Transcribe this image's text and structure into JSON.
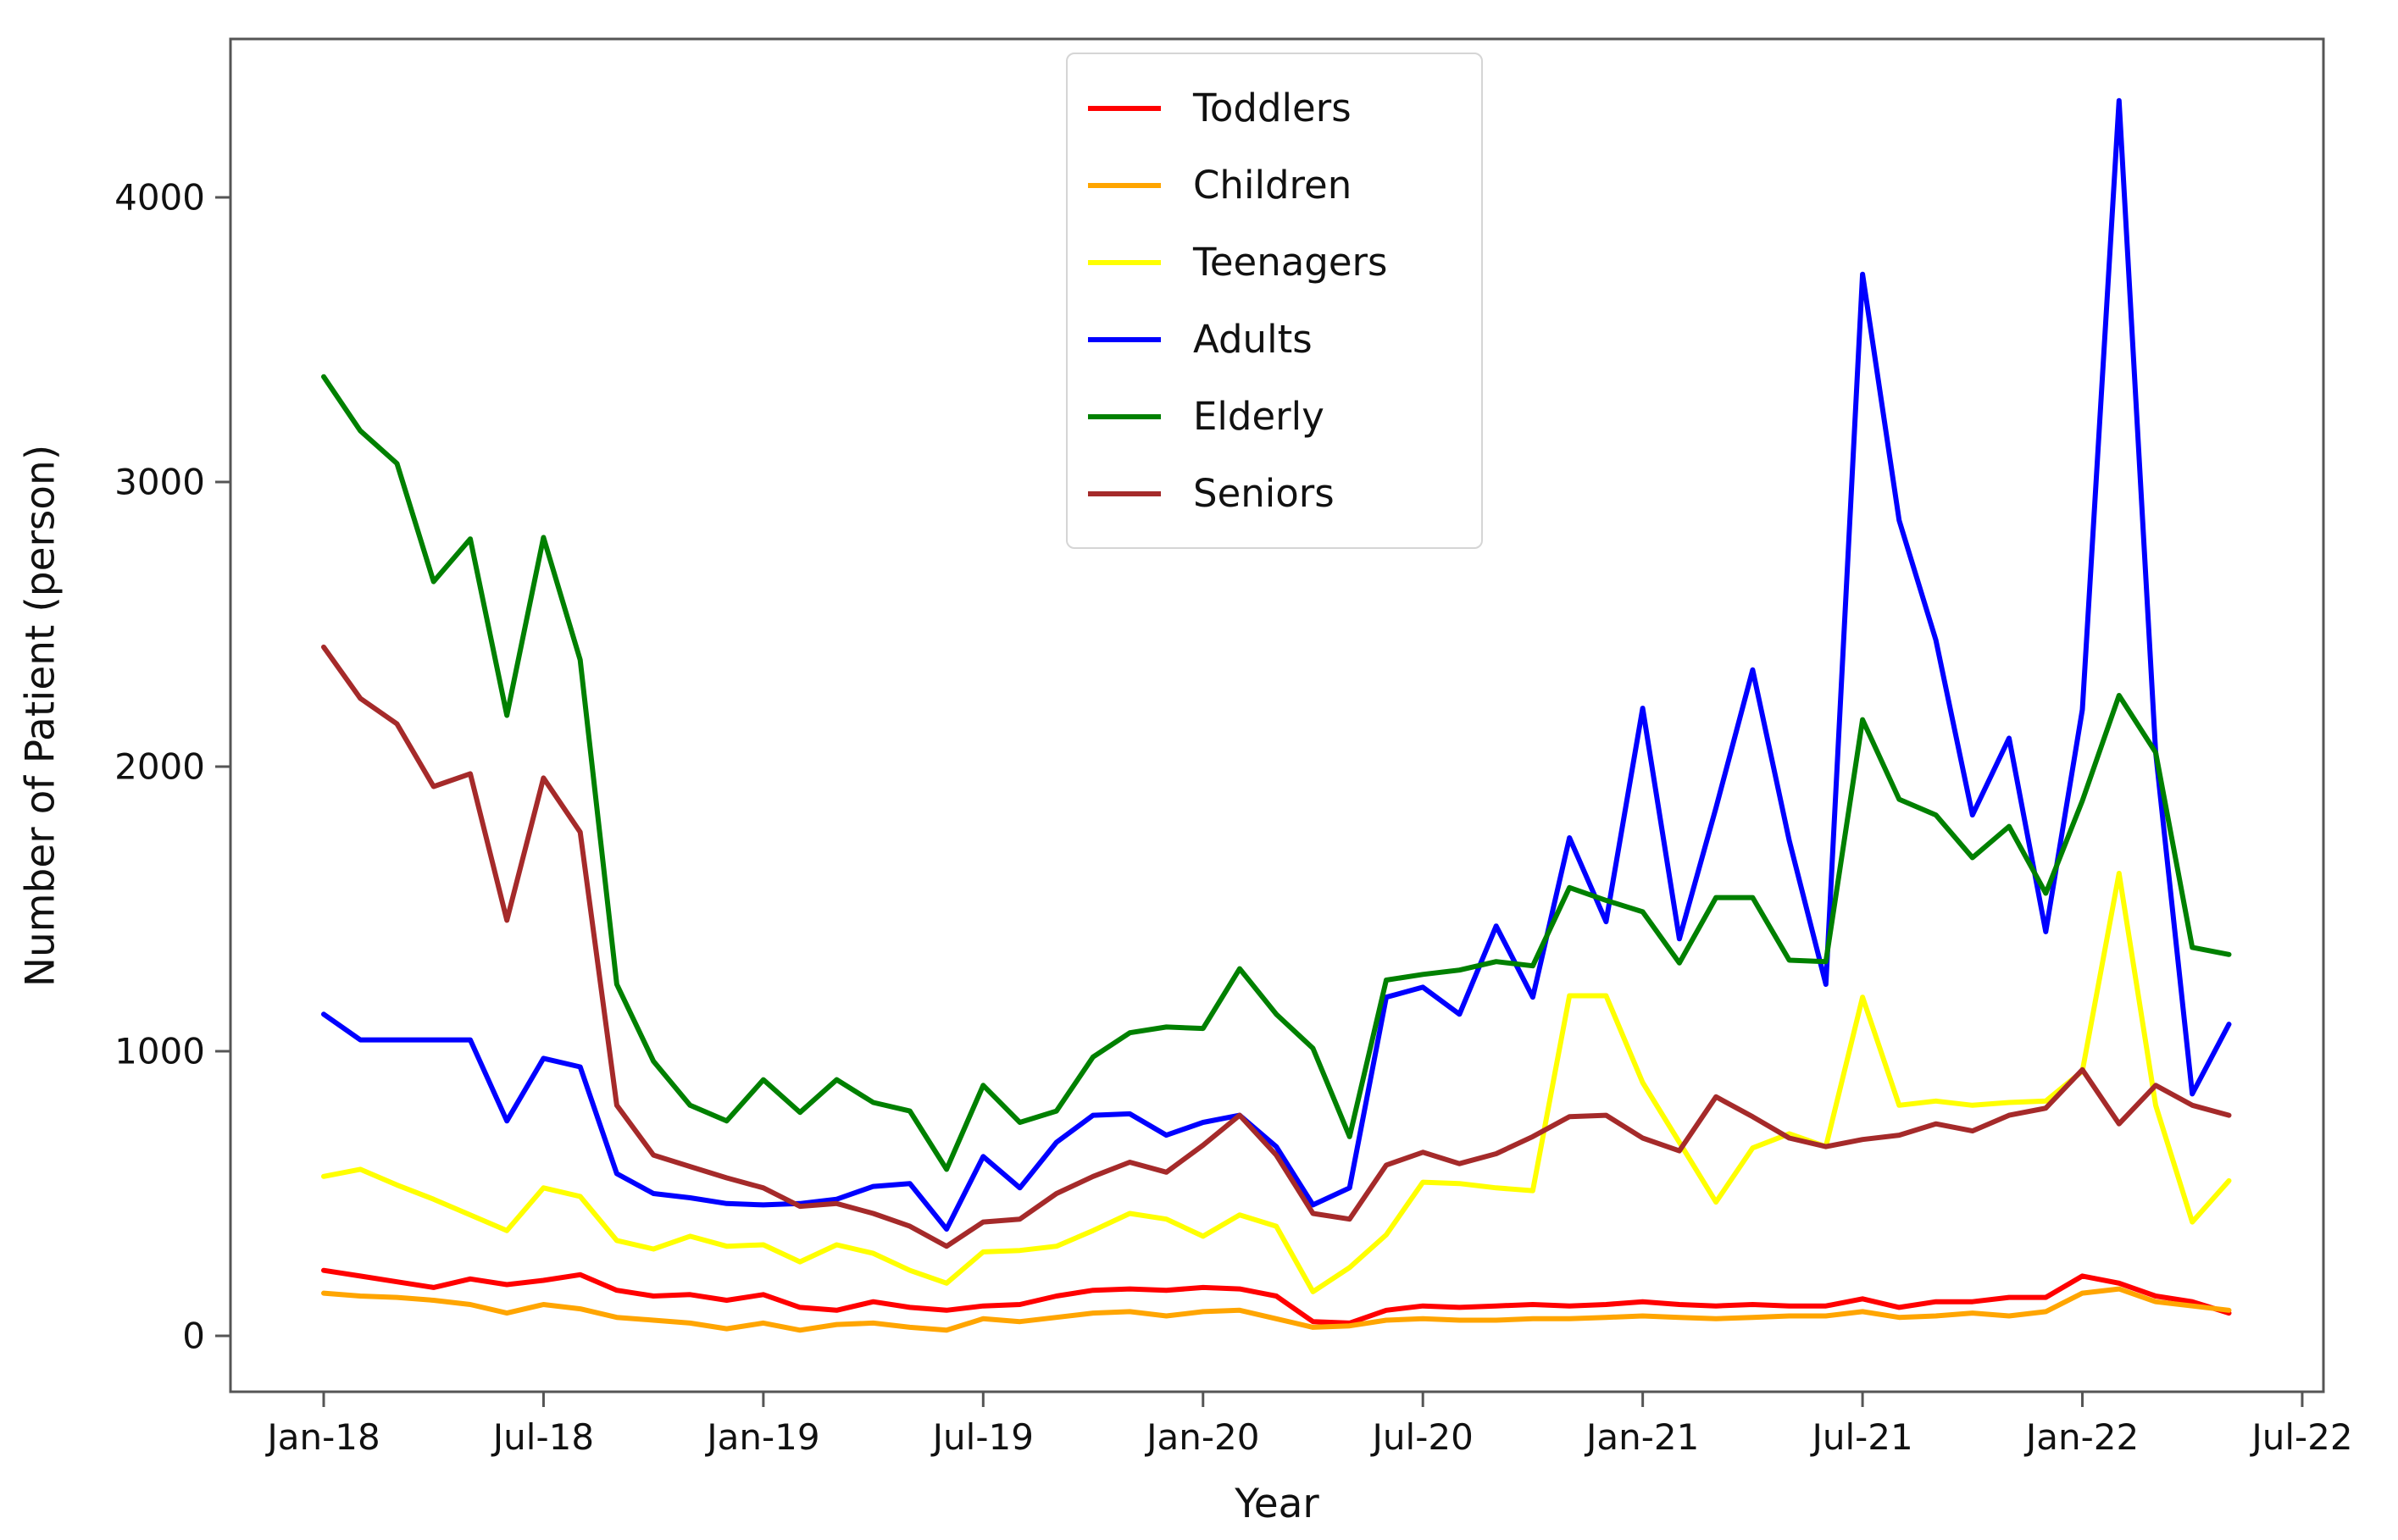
{
  "chart_data": {
    "type": "line",
    "title": "",
    "xlabel": "Year",
    "ylabel": "Number of Patient (person)",
    "x_tick_labels": [
      "Jan-18",
      "Jul-18",
      "Jan-19",
      "Jul-19",
      "Jan-20",
      "Jul-20",
      "Jan-21",
      "Jul-21",
      "Jan-22",
      "Jul-22"
    ],
    "y_ticks": [
      0,
      1000,
      2000,
      3000,
      4000
    ],
    "ylim": [
      -200,
      4600
    ],
    "grid": false,
    "legend_position": "upper center inside",
    "months": [
      "Jan-18",
      "Feb-18",
      "Mar-18",
      "Apr-18",
      "May-18",
      "Jun-18",
      "Jul-18",
      "Aug-18",
      "Sep-18",
      "Oct-18",
      "Nov-18",
      "Dec-18",
      "Jan-19",
      "Feb-19",
      "Mar-19",
      "Apr-19",
      "May-19",
      "Jun-19",
      "Jul-19",
      "Aug-19",
      "Sep-19",
      "Oct-19",
      "Nov-19",
      "Dec-19",
      "Jan-20",
      "Feb-20",
      "Mar-20",
      "Apr-20",
      "May-20",
      "Jun-20",
      "Jul-20",
      "Aug-20",
      "Sep-20",
      "Oct-20",
      "Nov-20",
      "Dec-20",
      "Jan-21",
      "Feb-21",
      "Mar-21",
      "Apr-21",
      "May-21",
      "Jun-21",
      "Jul-21",
      "Aug-21",
      "Sep-21",
      "Oct-21",
      "Nov-21",
      "Dec-21",
      "Jan-22",
      "Feb-22",
      "Mar-22",
      "Apr-22",
      "May-22"
    ],
    "series": [
      {
        "name": "Toddlers",
        "color": "#ff0000",
        "values": [
          230,
          210,
          190,
          170,
          200,
          180,
          195,
          215,
          160,
          140,
          145,
          125,
          145,
          100,
          90,
          120,
          100,
          90,
          105,
          110,
          140,
          160,
          165,
          160,
          170,
          165,
          140,
          50,
          45,
          90,
          105,
          100,
          105,
          110,
          105,
          110,
          120,
          110,
          105,
          110,
          105,
          105,
          130,
          100,
          120,
          120,
          135,
          135,
          210,
          185,
          140,
          120,
          80
        ]
      },
      {
        "name": "Children",
        "color": "#ffa500",
        "values": [
          150,
          140,
          135,
          125,
          110,
          80,
          110,
          95,
          65,
          55,
          45,
          25,
          45,
          20,
          40,
          45,
          30,
          20,
          60,
          50,
          65,
          80,
          85,
          70,
          85,
          90,
          60,
          30,
          35,
          55,
          60,
          55,
          55,
          60,
          60,
          65,
          70,
          65,
          60,
          65,
          70,
          70,
          85,
          65,
          70,
          80,
          70,
          85,
          150,
          165,
          120,
          105,
          90
        ]
      },
      {
        "name": "Teenagers",
        "color": "#ffff00",
        "values": [
          560,
          585,
          530,
          480,
          425,
          370,
          520,
          490,
          335,
          305,
          350,
          315,
          320,
          260,
          320,
          290,
          230,
          185,
          295,
          300,
          315,
          370,
          430,
          410,
          350,
          425,
          385,
          155,
          240,
          355,
          540,
          535,
          520,
          510,
          1195,
          1195,
          890,
          680,
          470,
          660,
          710,
          665,
          1190,
          810,
          825,
          810,
          820,
          825,
          930,
          1625,
          810,
          400,
          545
        ]
      },
      {
        "name": "Adults",
        "color": "#0000ff",
        "values": [
          1130,
          1040,
          1040,
          1040,
          1040,
          755,
          975,
          945,
          570,
          500,
          485,
          465,
          460,
          465,
          480,
          525,
          535,
          375,
          630,
          520,
          680,
          775,
          780,
          705,
          750,
          775,
          665,
          460,
          520,
          1190,
          1225,
          1130,
          1440,
          1190,
          1750,
          1455,
          2205,
          1395,
          1855,
          2340,
          1740,
          1235,
          3730,
          2865,
          2445,
          1830,
          2100,
          1420,
          2200,
          4340,
          2050,
          850,
          1095
        ]
      },
      {
        "name": "Elderly",
        "color": "#008000",
        "values": [
          3370,
          3180,
          3065,
          2650,
          2800,
          2180,
          2805,
          2375,
          1235,
          965,
          810,
          755,
          900,
          785,
          900,
          820,
          790,
          585,
          880,
          750,
          790,
          980,
          1065,
          1085,
          1080,
          1290,
          1130,
          1010,
          700,
          1250,
          1270,
          1285,
          1315,
          1300,
          1575,
          1530,
          1490,
          1310,
          1540,
          1540,
          1320,
          1315,
          2165,
          1885,
          1830,
          1680,
          1790,
          1555,
          1880,
          2250,
          2050,
          1365,
          1340
        ]
      },
      {
        "name": "Seniors",
        "color": "#a52a2a",
        "values": [
          2420,
          2240,
          2150,
          1930,
          1975,
          1460,
          1960,
          1770,
          810,
          635,
          595,
          555,
          520,
          455,
          465,
          430,
          385,
          315,
          400,
          410,
          500,
          560,
          610,
          575,
          670,
          775,
          635,
          430,
          410,
          600,
          645,
          605,
          640,
          700,
          770,
          775,
          695,
          650,
          840,
          770,
          695,
          665,
          690,
          705,
          745,
          720,
          775,
          800,
          935,
          745,
          880,
          810,
          775
        ]
      }
    ]
  }
}
